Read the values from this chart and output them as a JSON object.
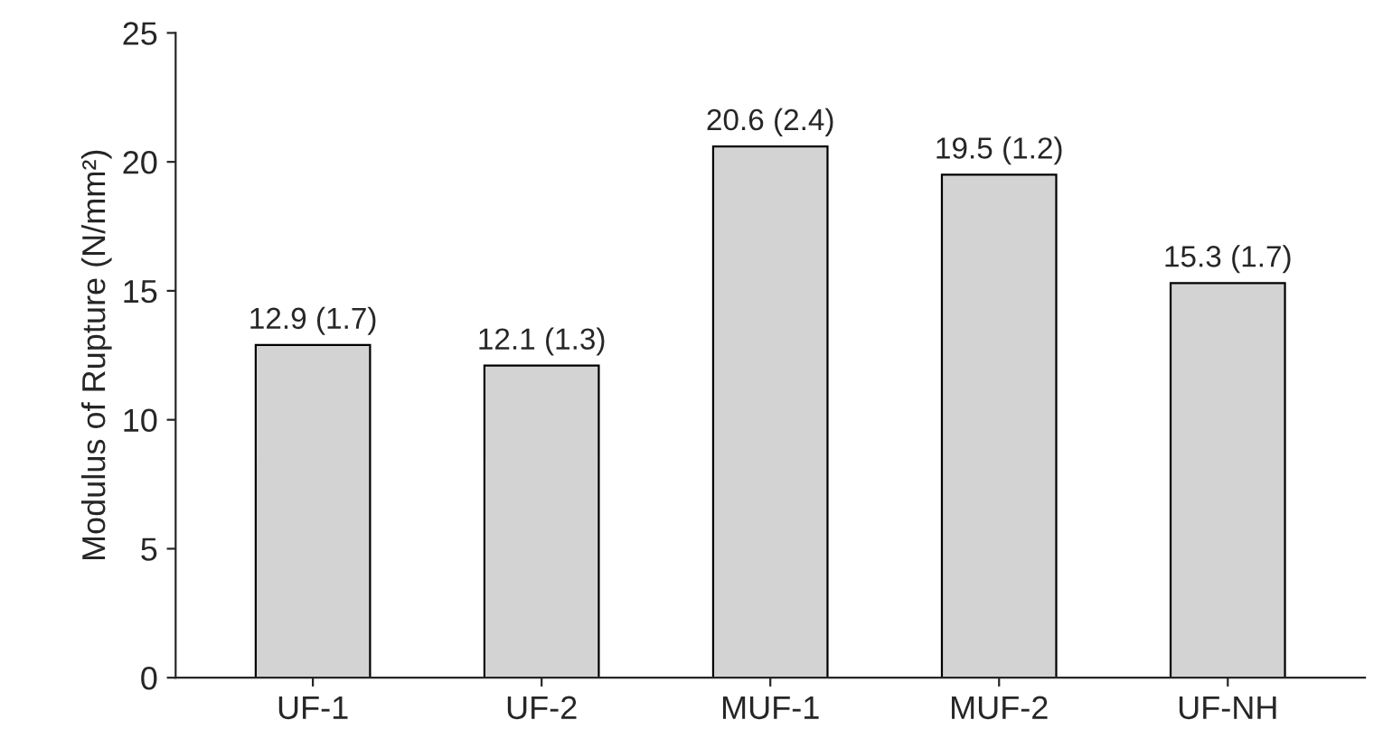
{
  "chart_data": {
    "type": "bar",
    "ylabel": "Modulus of Rupture (N/mm²)",
    "categories": [
      "UF-1",
      "UF-2",
      "MUF-1",
      "MUF-2",
      "UF-NH"
    ],
    "values": [
      12.9,
      12.1,
      20.6,
      19.5,
      15.3
    ],
    "value_labels": [
      "12.9 (1.7)",
      "12.1 (1.3)",
      "20.6 (2.4)",
      "19.5 (1.2)",
      "15.3 (1.7)"
    ],
    "color": "#d3d3d3",
    "ylim": [
      0,
      25
    ],
    "yticks": [
      0,
      5,
      10,
      15,
      20,
      25
    ],
    "grid": false,
    "legend": false
  }
}
